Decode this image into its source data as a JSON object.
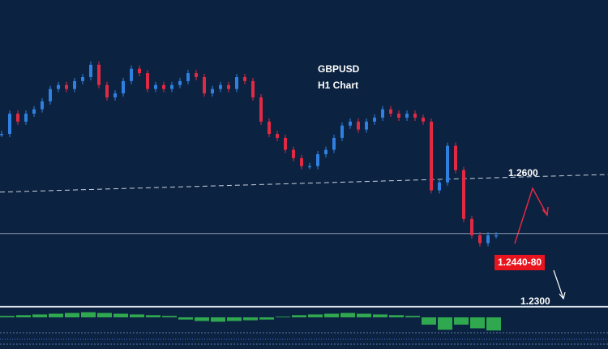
{
  "chart_data": {
    "type": "candlestick",
    "title": "GBPUSD",
    "subtitle": "H1 Chart",
    "ylim": [
      1.2296,
      1.2996
    ],
    "up_color": "#2f80e0",
    "down_color": "#e02a44",
    "close": [
      1.2692,
      1.2738,
      1.272,
      1.2738,
      1.2748,
      1.2766,
      1.2794,
      1.2803,
      1.2794,
      1.2812,
      1.2821,
      1.2849,
      1.2803,
      1.2775,
      1.2784,
      1.2812,
      1.284,
      1.283,
      1.2794,
      1.2803,
      1.2794,
      1.2803,
      1.2812,
      1.283,
      1.2821,
      1.2784,
      1.2794,
      1.2803,
      1.2794,
      1.2821,
      1.2812,
      1.2775,
      1.272,
      1.2692,
      1.2683,
      1.2656,
      1.2637,
      1.2619,
      1.2619,
      1.2646,
      1.2656,
      1.2683,
      1.2711,
      1.272,
      1.2702,
      1.272,
      1.2729,
      1.2748,
      1.2738,
      1.2729,
      1.2738,
      1.2729,
      1.272,
      1.2564,
      1.2582,
      1.2665,
      1.261,
      1.2499,
      1.2462,
      1.2444,
      1.2462,
      1.2462
    ],
    "trendline": {
      "label": "1.2600",
      "values": [
        1.256,
        1.26
      ]
    },
    "support": 1.2466,
    "target": {
      "label": "1.2440-80"
    },
    "lower_level": {
      "label": "1.2300",
      "value": 1.23
    },
    "oscillator": {
      "color": "#2fa84f",
      "ylim": [
        -20,
        10
      ],
      "values": [
        2,
        3,
        4,
        5,
        6,
        7,
        6,
        5,
        4,
        3,
        2,
        -3,
        -5,
        -6,
        -5,
        -4,
        -3,
        1,
        3,
        4,
        5,
        6,
        5,
        4,
        3,
        2,
        -10,
        -17,
        -10,
        -15,
        -18
      ]
    }
  }
}
